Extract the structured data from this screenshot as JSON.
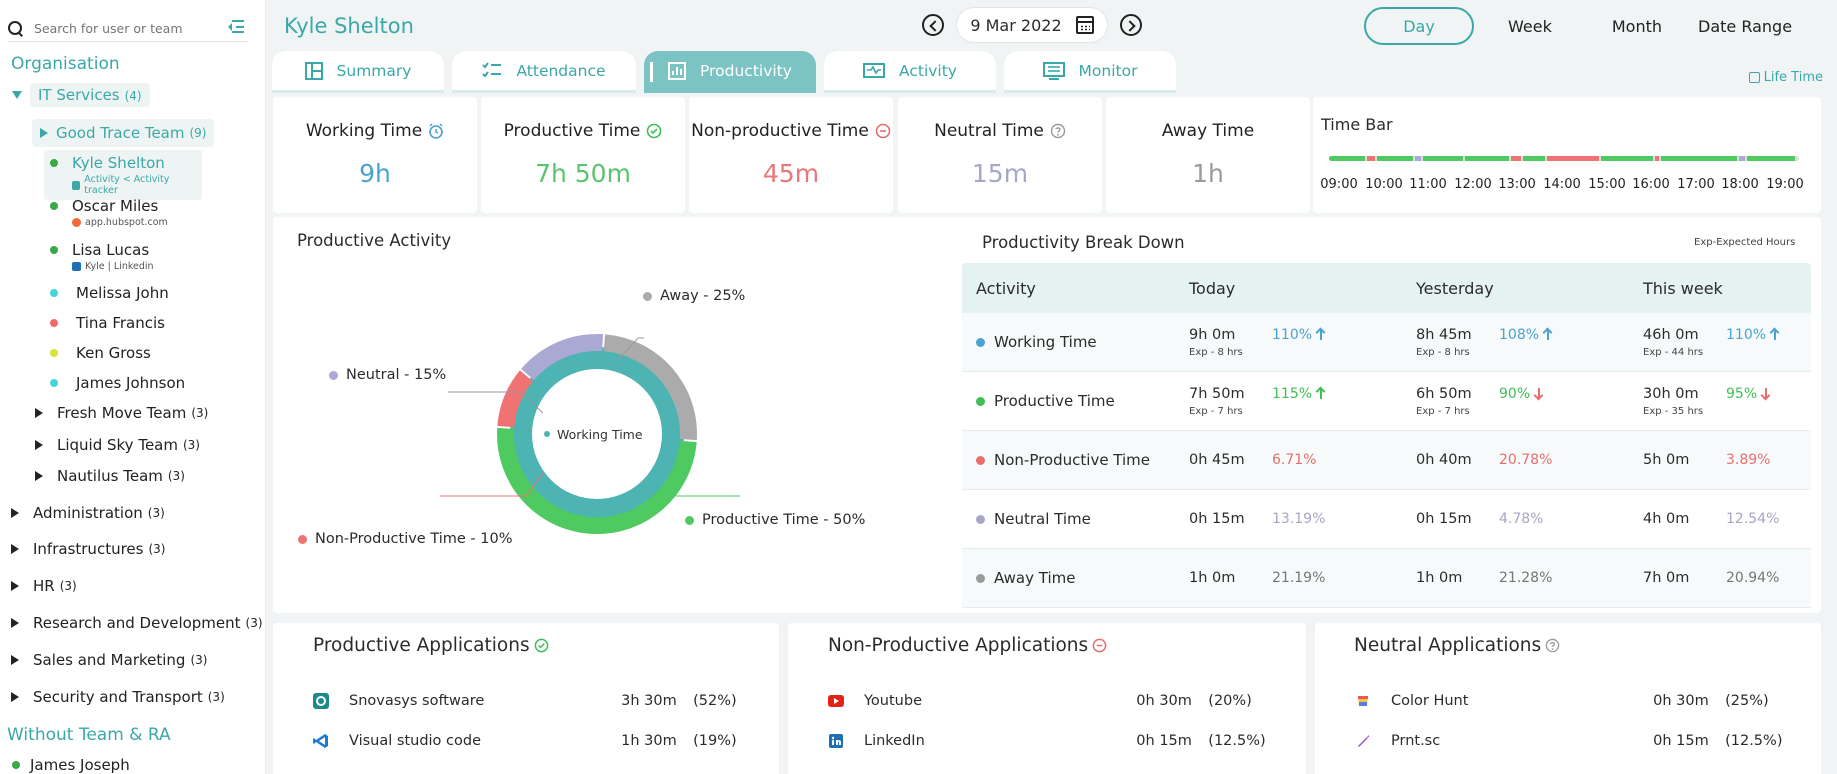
{
  "sidebar": {
    "search_placeholder": "Search for user or team",
    "organisation": "Organisation",
    "it_services": {
      "label": "IT Services",
      "count": "(4)"
    },
    "good_trace": {
      "label": "Good Trace Team",
      "count": "(9)"
    },
    "members": [
      {
        "name": "Kyle Shelton",
        "sub": "Activity < Activity tracker",
        "color": "#3aa843"
      },
      {
        "name": "Oscar Miles",
        "sub": "app.hubspot.com",
        "color": "#3aa843"
      },
      {
        "name": "Lisa Lucas",
        "sub": "Kyle | Linkedin",
        "color": "#3aa843"
      },
      {
        "name": "Melissa John",
        "color": "#46d3db"
      },
      {
        "name": "Tina Francis",
        "color": "#ee6b6b"
      },
      {
        "name": "Ken Gross",
        "color": "#d7e33a"
      },
      {
        "name": "James Johnson",
        "color": "#46d3db"
      }
    ],
    "subteams": [
      {
        "label": "Fresh Move Team",
        "count": "(3)"
      },
      {
        "label": "Liquid Sky Team",
        "count": "(3)"
      },
      {
        "label": "Nautilus Team",
        "count": "(3)"
      }
    ],
    "departments": [
      {
        "label": "Administration",
        "count": "(3)"
      },
      {
        "label": "Infrastructures",
        "count": "(3)"
      },
      {
        "label": "HR",
        "count": "(3)"
      },
      {
        "label": "Research and Development",
        "count": "(3)"
      },
      {
        "label": "Sales and Marketing",
        "count": "(3)"
      },
      {
        "label": "Security and Transport",
        "count": "(3)"
      }
    ],
    "without_team": "Without Team & RA",
    "loose_user": "James Joseph"
  },
  "header": {
    "user": "Kyle Shelton",
    "date": "9 Mar 2022",
    "ranges": [
      "Day",
      "Week",
      "Month",
      "Date Range"
    ]
  },
  "tabs": [
    "Summary",
    "Attendance",
    "Productivity",
    "Activity",
    "Monitor"
  ],
  "life_time": "Life Time",
  "stats": [
    {
      "label": "Working Time",
      "value": "9h",
      "color": "#4aa3cf"
    },
    {
      "label": "Productive Time",
      "value": "7h 50m",
      "color": "#5cc36f"
    },
    {
      "label": "Non-productive Time",
      "value": "45m",
      "color": "#e7777b"
    },
    {
      "label": "Neutral Time",
      "value": "15m",
      "color": "#a6a6c6"
    },
    {
      "label": "Away Time",
      "value": "1h",
      "color": "#9b9b9b"
    }
  ],
  "time_bar": {
    "title": "Time Bar",
    "hours": [
      "09:00",
      "10:00",
      "11:00",
      "12:00",
      "13:00",
      "14:00",
      "15:00",
      "16:00",
      "17:00",
      "18:00",
      "19:00"
    ]
  },
  "productive_activity": {
    "title": "Productive Activity",
    "center": "Working Time",
    "slices": [
      {
        "label": "Away - 25%",
        "value": 25,
        "color": "#ababab"
      },
      {
        "label": "Productive Time - 50%",
        "value": 50,
        "color": "#4fca60"
      },
      {
        "label": "Non-Productive Time - 10%",
        "value": 10,
        "color": "#ef7373"
      },
      {
        "label": "Neutral - 15%",
        "value": 15,
        "color": "#a9a9d4"
      }
    ]
  },
  "breakdown": {
    "title": "Productivity Break Down",
    "note": "Exp-Expected Hours",
    "headers": [
      "Activity",
      "Today",
      "Yesterday",
      "This week"
    ],
    "rows": [
      {
        "activity": "Working Time",
        "color": "#4aa3cf",
        "cells": [
          {
            "v": "9h 0m",
            "exp": "Exp - 8 hrs",
            "pct": "110%",
            "dir": "up",
            "pc": "#4aa3cf"
          },
          {
            "v": "8h 45m",
            "exp": "Exp - 8 hrs",
            "pct": "108%",
            "dir": "up",
            "pc": "#4aa3cf"
          },
          {
            "v": "46h 0m",
            "exp": "Exp - 44 hrs",
            "pct": "110%",
            "dir": "up",
            "pc": "#4aa3cf"
          }
        ]
      },
      {
        "activity": "Productive Time",
        "color": "#3fbf55",
        "cells": [
          {
            "v": "7h 50m",
            "exp": "Exp - 7 hrs",
            "pct": "115%",
            "dir": "up",
            "pc": "#3fbf55"
          },
          {
            "v": "6h 50m",
            "exp": "Exp - 7 hrs",
            "pct": "90%",
            "dir": "down",
            "pc": "#3fbf55"
          },
          {
            "v": "30h 0m",
            "exp": "Exp - 35 hrs",
            "pct": "95%",
            "dir": "down",
            "pc": "#3fbf55"
          }
        ]
      },
      {
        "activity": "Non-Productive Time",
        "color": "#e86e6e",
        "cells": [
          {
            "v": "0h 45m",
            "pct": "6.71%",
            "pc": "#e86e6e"
          },
          {
            "v": "0h 40m",
            "pct": "20.78%",
            "pc": "#e86e6e"
          },
          {
            "v": "5h 0m",
            "pct": "3.89%",
            "pc": "#e86e6e"
          }
        ]
      },
      {
        "activity": "Neutral Time",
        "color": "#a6a6c6",
        "cells": [
          {
            "v": "0h 15m",
            "pct": "13.19%",
            "pc": "#a6a6c6"
          },
          {
            "v": "0h 15m",
            "pct": "4.78%",
            "pc": "#a6a6c6"
          },
          {
            "v": "4h 0m",
            "pct": "12.54%",
            "pc": "#a6a6c6"
          }
        ]
      },
      {
        "activity": "Away Time",
        "color": "#9b9b9b",
        "cells": [
          {
            "v": "1h 0m",
            "pct": "21.19%",
            "pc": "#777777"
          },
          {
            "v": "1h 0m",
            "pct": "21.28%",
            "pc": "#777777"
          },
          {
            "v": "7h 0m",
            "pct": "20.94%",
            "pc": "#777777"
          }
        ]
      }
    ]
  },
  "apps": {
    "productive": {
      "title": "Productive Applications",
      "rows": [
        {
          "name": "Snovasys software",
          "time": "3h 30m",
          "pct": "(52%)"
        },
        {
          "name": "Visual studio code",
          "time": "1h 30m",
          "pct": "(19%)"
        }
      ]
    },
    "non_productive": {
      "title": "Non-Productive Applications",
      "rows": [
        {
          "name": "Youtube",
          "time": "0h 30m",
          "pct": "(20%)"
        },
        {
          "name": "LinkedIn",
          "time": "0h 15m",
          "pct": "(12.5%)"
        }
      ]
    },
    "neutral": {
      "title": "Neutral Applications",
      "rows": [
        {
          "name": "Color Hunt",
          "time": "0h 30m",
          "pct": "(25%)"
        },
        {
          "name": "Prnt.sc",
          "time": "0h 15m",
          "pct": "(12.5%)"
        }
      ]
    }
  }
}
